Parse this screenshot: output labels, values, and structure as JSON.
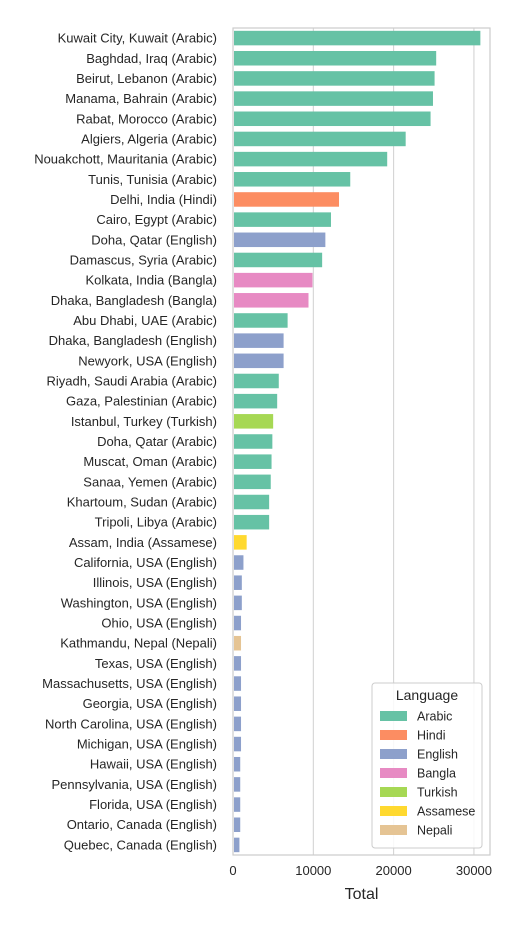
{
  "chart_data": {
    "type": "bar",
    "orientation": "horizontal",
    "xlabel": "Total",
    "ylabel": "",
    "xlim": [
      0,
      32000
    ],
    "xticks": [
      0,
      10000,
      20000,
      30000
    ],
    "xtick_labels": [
      "0",
      "10000",
      "20000",
      "30000"
    ],
    "grid": "vertical",
    "legend": {
      "title": "Language",
      "placement": "lower-right",
      "entries": [
        {
          "name": "Arabic",
          "color": "#66c2a5"
        },
        {
          "name": "Hindi",
          "color": "#fc8d62"
        },
        {
          "name": "English",
          "color": "#8da0cb"
        },
        {
          "name": "Bangla",
          "color": "#e78ac3"
        },
        {
          "name": "Turkish",
          "color": "#a6d854"
        },
        {
          "name": "Assamese",
          "color": "#ffd92f"
        },
        {
          "name": "Nepali",
          "color": "#e5c494"
        }
      ]
    },
    "categories": [
      "Kuwait City, Kuwait (Arabic)",
      "Baghdad, Iraq (Arabic)",
      "Beirut, Lebanon (Arabic)",
      "Manama, Bahrain (Arabic)",
      "Rabat, Morocco (Arabic)",
      "Algiers, Algeria (Arabic)",
      "Nouakchott, Mauritania (Arabic)",
      "Tunis, Tunisia (Arabic)",
      "Delhi, India (Hindi)",
      "Cairo, Egypt (Arabic)",
      "Doha, Qatar (English)",
      "Damascus, Syria (Arabic)",
      "Kolkata, India (Bangla)",
      "Dhaka, Bangladesh (Bangla)",
      "Abu Dhabi, UAE (Arabic)",
      "Dhaka, Bangladesh (English)",
      "Newyork, USA (English)",
      "Riyadh, Saudi Arabia (Arabic)",
      "Gaza, Palestinian (Arabic)",
      "Istanbul, Turkey (Turkish)",
      "Doha, Qatar (Arabic)",
      "Muscat, Oman (Arabic)",
      "Sanaa, Yemen (Arabic)",
      "Khartoum, Sudan (Arabic)",
      "Tripoli, Libya (Arabic)",
      "Assam, India (Assamese)",
      "California, USA (English)",
      "Illinois, USA (English)",
      "Washington, USA (English)",
      "Ohio, USA (English)",
      "Kathmandu, Nepal (Nepali)",
      "Texas, USA (English)",
      "Massachusetts, USA (English)",
      "Georgia, USA (English)",
      "North Carolina, USA (English)",
      "Michigan, USA (English)",
      "Hawaii, USA (English)",
      "Pennsylvania, USA (English)",
      "Florida, USA (English)",
      "Ontario, Canada (English)",
      "Quebec, Canada (English)"
    ],
    "languages": [
      "Arabic",
      "Arabic",
      "Arabic",
      "Arabic",
      "Arabic",
      "Arabic",
      "Arabic",
      "Arabic",
      "Hindi",
      "Arabic",
      "English",
      "Arabic",
      "Bangla",
      "Bangla",
      "Arabic",
      "English",
      "English",
      "Arabic",
      "Arabic",
      "Turkish",
      "Arabic",
      "Arabic",
      "Arabic",
      "Arabic",
      "Arabic",
      "Assamese",
      "English",
      "English",
      "English",
      "English",
      "Nepali",
      "English",
      "English",
      "English",
      "English",
      "English",
      "English",
      "English",
      "English",
      "English",
      "English"
    ],
    "values": [
      30800,
      25300,
      25100,
      24900,
      24600,
      21500,
      19200,
      14600,
      13200,
      12200,
      11500,
      11100,
      9900,
      9400,
      6800,
      6300,
      6300,
      5700,
      5500,
      5000,
      4900,
      4800,
      4700,
      4500,
      4500,
      1700,
      1300,
      1100,
      1100,
      1000,
      1000,
      1000,
      1000,
      1000,
      1000,
      1000,
      900,
      900,
      900,
      900,
      800
    ]
  }
}
